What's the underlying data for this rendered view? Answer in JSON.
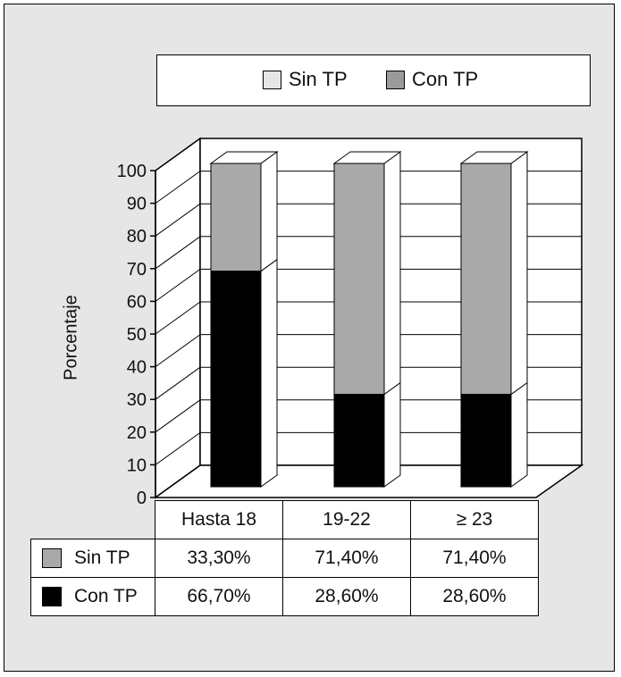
{
  "chart_data": {
    "type": "bar",
    "stacked": true,
    "categories": [
      "Hasta 18",
      "19-22",
      "≥ 23"
    ],
    "series": [
      {
        "name": "Con TP",
        "values": [
          66.7,
          28.6,
          28.6
        ],
        "color": "#000000"
      },
      {
        "name": "Sin TP",
        "values": [
          33.3,
          71.4,
          71.4
        ],
        "color": "#a9a9a9"
      }
    ],
    "ylabel": "Porcentaje",
    "ylim": [
      0,
      100
    ],
    "yticks": [
      "0",
      "10",
      "20",
      "30",
      "40",
      "50",
      "60",
      "70",
      "80",
      "90",
      "100"
    ],
    "legend": {
      "position": "top",
      "items": [
        {
          "label": "Sin TP",
          "color": "#e6e6e6"
        },
        {
          "label": "Con TP",
          "color": "#9a9a9a"
        }
      ]
    },
    "table": {
      "rows": [
        {
          "label": "Sin TP",
          "swatch": "#a9a9a9",
          "cells": [
            "33,30%",
            "71,40%",
            "71,40%"
          ]
        },
        {
          "label": "Con TP",
          "swatch": "#000000",
          "cells": [
            "66,70%",
            "28,60%",
            "28,60%"
          ]
        }
      ]
    }
  }
}
